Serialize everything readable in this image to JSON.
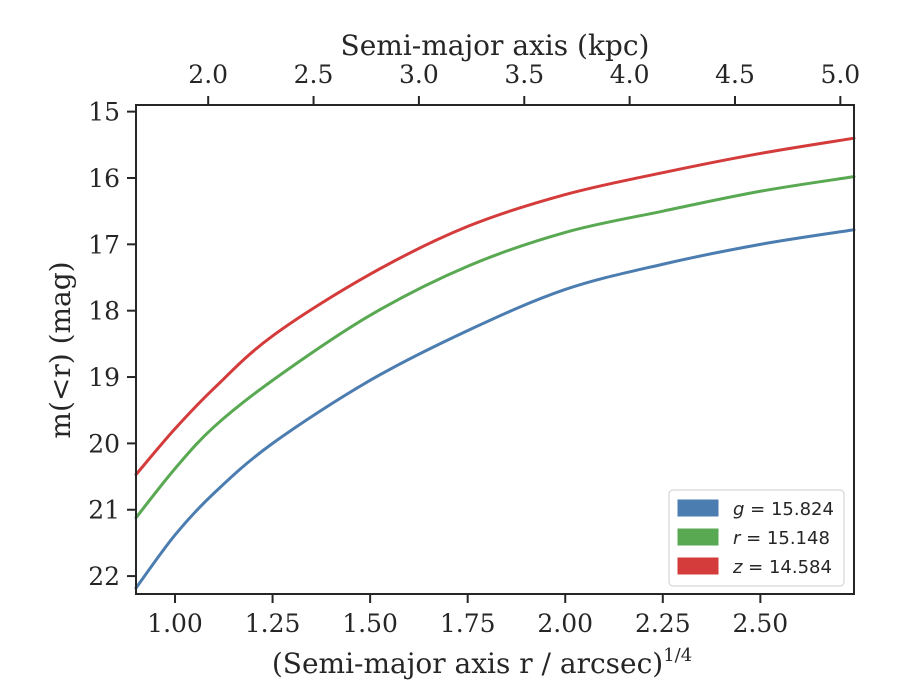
{
  "chart_data": {
    "type": "line",
    "xlabel": "(Semi-major axis r / arcsec)",
    "xlabel_exponent": "1/4",
    "ylabel": "m(<r) (mag)",
    "top_xlabel": "Semi-major axis (kpc)",
    "xlim": [
      0.9,
      2.74
    ],
    "ylim": [
      22.27,
      14.9
    ],
    "y_inverted": true,
    "x_ticks": [
      1.0,
      1.25,
      1.5,
      1.75,
      2.0,
      2.25,
      2.5
    ],
    "x_tick_labels": [
      "1.00",
      "1.25",
      "1.50",
      "1.75",
      "2.00",
      "2.25",
      "2.50"
    ],
    "y_ticks": [
      15,
      16,
      17,
      18,
      19,
      20,
      21,
      22
    ],
    "y_tick_labels": [
      "15",
      "16",
      "17",
      "18",
      "19",
      "20",
      "21",
      "22"
    ],
    "top_x_tick_positions": [
      1.085,
      1.355,
      1.625,
      1.895,
      2.165,
      2.435,
      2.705
    ],
    "top_x_tick_labels": [
      "2.0",
      "2.5",
      "3.0",
      "3.5",
      "4.0",
      "4.5",
      "5.0"
    ],
    "grid": false,
    "legend_position": "bottom-right",
    "series": [
      {
        "name": "g = 15.824",
        "name_var": "g",
        "name_value": "15.824",
        "color": "#4c7db0",
        "x": [
          0.9,
          1.0,
          1.1,
          1.25,
          1.5,
          1.75,
          2.0,
          2.25,
          2.5,
          2.74
        ],
        "y": [
          22.18,
          21.38,
          20.75,
          20.0,
          19.05,
          18.3,
          17.68,
          17.3,
          17.0,
          16.78
        ]
      },
      {
        "name": "r = 15.148",
        "name_var": "r",
        "name_value": "15.148",
        "color": "#59a852",
        "x": [
          0.9,
          1.0,
          1.1,
          1.25,
          1.5,
          1.75,
          2.0,
          2.25,
          2.5,
          2.74
        ],
        "y": [
          21.12,
          20.38,
          19.75,
          19.05,
          18.07,
          17.33,
          16.82,
          16.5,
          16.2,
          15.98
        ]
      },
      {
        "name": "z = 14.584",
        "name_var": "z",
        "name_value": "14.584",
        "color": "#d43b3b",
        "x": [
          0.9,
          1.0,
          1.1,
          1.25,
          1.5,
          1.75,
          2.0,
          2.25,
          2.5,
          2.74
        ],
        "y": [
          20.47,
          19.78,
          19.17,
          18.38,
          17.45,
          16.73,
          16.25,
          15.92,
          15.63,
          15.4
        ]
      }
    ]
  }
}
